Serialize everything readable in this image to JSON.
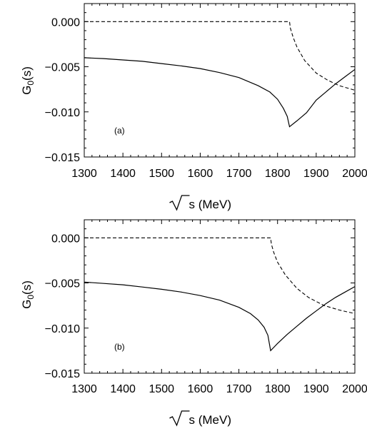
{
  "chart_data": [
    {
      "type": "line",
      "panel_label": "(a)",
      "xlabel": "√s (MeV)",
      "ylabel": "G0(s)",
      "xlim": [
        1300,
        2000
      ],
      "ylim": [
        -0.015,
        0.002
      ],
      "x_ticks": [
        1300,
        1400,
        1500,
        1600,
        1700,
        1800,
        1900,
        2000
      ],
      "y_ticks": [
        0.0,
        -0.005,
        -0.01,
        -0.015
      ],
      "x_tick_labels": [
        "1300",
        "1400",
        "1500",
        "1600",
        "1700",
        "1800",
        "1900",
        "2000"
      ],
      "y_tick_labels": [
        "0.000",
        "−0.005",
        "−0.010",
        "−0.015"
      ],
      "grid": false,
      "series": [
        {
          "style": "solid",
          "x": [
            1300,
            1350,
            1400,
            1450,
            1500,
            1550,
            1600,
            1650,
            1700,
            1750,
            1780,
            1800,
            1815,
            1825,
            1831,
            1850,
            1875,
            1900,
            1925,
            1950,
            1975,
            2000
          ],
          "y": [
            -0.004,
            -0.0041,
            -0.00425,
            -0.0044,
            -0.00465,
            -0.0049,
            -0.0052,
            -0.00565,
            -0.0062,
            -0.0071,
            -0.0078,
            -0.0086,
            -0.0096,
            -0.0105,
            -0.01165,
            -0.011,
            -0.0101,
            -0.0087,
            -0.0078,
            -0.0069,
            -0.0061,
            -0.0053
          ]
        },
        {
          "style": "dashed",
          "x": [
            1300,
            1831,
            1833,
            1840,
            1850,
            1870,
            1900,
            1930,
            1960,
            2000
          ],
          "y": [
            0.0,
            0.0,
            -0.0007,
            -0.0017,
            -0.0028,
            -0.0043,
            -0.0057,
            -0.0065,
            -0.0071,
            -0.0076
          ]
        }
      ]
    },
    {
      "type": "line",
      "panel_label": "(b)",
      "xlabel": "√s (MeV)",
      "ylabel": "G0(s)",
      "xlim": [
        1300,
        2000
      ],
      "ylim": [
        -0.015,
        0.002
      ],
      "x_ticks": [
        1300,
        1400,
        1500,
        1600,
        1700,
        1800,
        1900,
        2000
      ],
      "y_ticks": [
        0.0,
        -0.005,
        -0.01,
        -0.015
      ],
      "x_tick_labels": [
        "1300",
        "1400",
        "1500",
        "1600",
        "1700",
        "1800",
        "1900",
        "2000"
      ],
      "y_tick_labels": [
        "0.000",
        "−0.005",
        "−0.010",
        "−0.015"
      ],
      "grid": false,
      "series": [
        {
          "style": "solid",
          "x": [
            1300,
            1350,
            1400,
            1450,
            1500,
            1550,
            1600,
            1650,
            1700,
            1730,
            1750,
            1765,
            1775,
            1782,
            1800,
            1825,
            1850,
            1875,
            1900,
            1925,
            1950,
            1975,
            2000
          ],
          "y": [
            -0.0049,
            -0.00505,
            -0.0052,
            -0.00545,
            -0.0057,
            -0.006,
            -0.0064,
            -0.0069,
            -0.0077,
            -0.0084,
            -0.0091,
            -0.0099,
            -0.0108,
            -0.0125,
            -0.0117,
            -0.0107,
            -0.0098,
            -0.0089,
            -0.0081,
            -0.0073,
            -0.0066,
            -0.006,
            -0.0054
          ]
        },
        {
          "style": "dashed",
          "x": [
            1300,
            1782,
            1784,
            1790,
            1800,
            1820,
            1850,
            1880,
            1920,
            1960,
            2000
          ],
          "y": [
            0.0,
            0.0,
            -0.0007,
            -0.0016,
            -0.0027,
            -0.0041,
            -0.0056,
            -0.0066,
            -0.0075,
            -0.008,
            -0.0084
          ]
        }
      ]
    }
  ]
}
